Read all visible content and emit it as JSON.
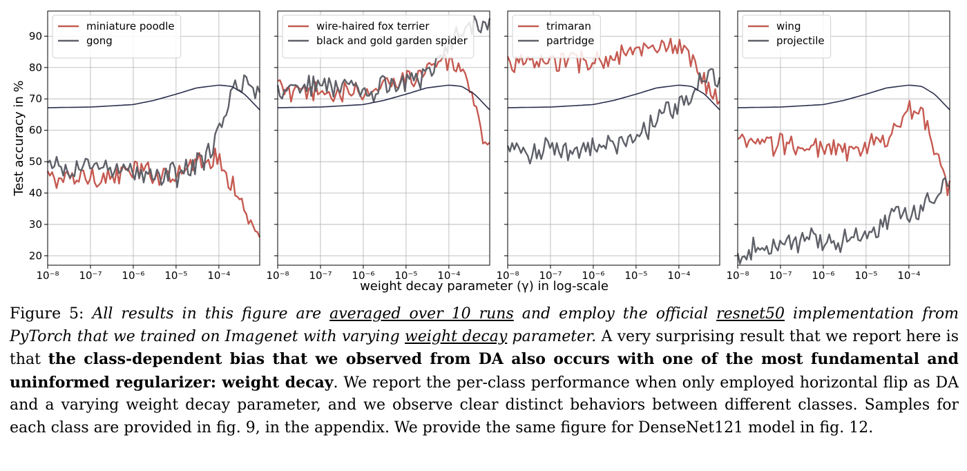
{
  "figure": {
    "xlabel": "weight decay parameter (γ) in log-scale",
    "ylabel": "Test accuracy in %",
    "x_ticks": [
      "10⁻⁸",
      "10⁻⁷",
      "10⁻⁶",
      "10⁻⁵",
      "10⁻⁴"
    ],
    "y_ticks": [
      "20",
      "30",
      "40",
      "50",
      "60",
      "70",
      "80",
      "90"
    ]
  },
  "colors": {
    "red": "#c55a51",
    "gray": "#5e6068",
    "navy": "#2a2e4c",
    "grid": "#b0b0b0"
  },
  "chart_data": [
    {
      "type": "line",
      "x_scale": "log",
      "xlim": [
        1e-08,
        0.0009
      ],
      "ylim": [
        17,
        98
      ],
      "series": [
        {
          "name": "miniature poodle",
          "color": "red",
          "x": [
            1e-08,
            3e-08,
            1e-07,
            3e-07,
            1e-06,
            3e-06,
            1e-05,
            3e-05,
            5e-05,
            0.0001,
            0.0002,
            0.0004,
            0.0009
          ],
          "y": [
            45,
            44,
            46,
            45,
            47,
            46,
            47,
            50,
            52,
            50,
            44,
            34,
            22
          ]
        },
        {
          "name": "gong",
          "color": "gray",
          "x": [
            1e-08,
            3e-08,
            1e-07,
            3e-07,
            1e-06,
            3e-06,
            1e-05,
            3e-05,
            6e-05,
            0.0001,
            0.00015,
            0.0002,
            0.0003,
            0.0005,
            0.0009
          ],
          "y": [
            48,
            47,
            49,
            48,
            47,
            45,
            46,
            49,
            53,
            58,
            65,
            72,
            75,
            75,
            72
          ]
        },
        {
          "name": "",
          "color": "navy",
          "x": [
            1e-08,
            1e-07,
            1e-06,
            3e-06,
            1e-05,
            3e-05,
            0.0001,
            0.0002,
            0.0004,
            0.0009
          ],
          "y": [
            67.2,
            67.4,
            68.2,
            69.5,
            71.5,
            73.5,
            74.4,
            74.0,
            71.5,
            66.5
          ]
        }
      ]
    },
    {
      "type": "line",
      "x_scale": "log",
      "xlim": [
        1e-08,
        0.0009
      ],
      "ylim": [
        17,
        98
      ],
      "series": [
        {
          "name": "wire-haired fox terrier",
          "color": "red",
          "x": [
            1e-08,
            3e-08,
            1e-07,
            3e-07,
            1e-06,
            3e-06,
            1e-05,
            3e-05,
            6e-05,
            0.0001,
            0.0002,
            0.0003,
            0.0005,
            0.0009
          ],
          "y": [
            74,
            71,
            72,
            72,
            71,
            74,
            77,
            80,
            82,
            81,
            78,
            72,
            62,
            53
          ]
        },
        {
          "name": "black and gold garden spider",
          "color": "gray",
          "x": [
            1e-08,
            3e-08,
            1e-07,
            3e-07,
            1e-06,
            3e-06,
            1e-05,
            3e-05,
            6e-05,
            0.0001,
            0.0002,
            0.0004,
            0.0009
          ],
          "y": [
            73,
            75,
            74,
            75,
            70,
            74,
            76,
            78,
            82,
            87,
            91,
            93,
            94
          ]
        },
        {
          "name": "",
          "color": "navy",
          "x": [
            1e-08,
            1e-07,
            1e-06,
            3e-06,
            1e-05,
            3e-05,
            0.0001,
            0.0002,
            0.0004,
            0.0009
          ],
          "y": [
            67.2,
            67.4,
            68.2,
            69.5,
            71.5,
            73.5,
            74.4,
            74.0,
            71.5,
            66.5
          ]
        }
      ]
    },
    {
      "type": "line",
      "x_scale": "log",
      "xlim": [
        1e-08,
        0.0009
      ],
      "ylim": [
        17,
        98
      ],
      "series": [
        {
          "name": "trimaran",
          "color": "red",
          "x": [
            1e-08,
            3e-08,
            1e-07,
            3e-07,
            1e-06,
            3e-06,
            1e-05,
            3e-05,
            0.0001,
            0.0002,
            0.0003,
            0.0005,
            0.0009
          ],
          "y": [
            82,
            81,
            82,
            82,
            82,
            83,
            85,
            86,
            85,
            82,
            79,
            74,
            67
          ]
        },
        {
          "name": "partridge",
          "color": "gray",
          "x": [
            1e-08,
            3e-08,
            1e-07,
            3e-07,
            1e-06,
            3e-06,
            1e-05,
            2e-05,
            5e-05,
            0.0001,
            0.0002,
            0.0004,
            0.0009
          ],
          "y": [
            54,
            53,
            55,
            53,
            54,
            55,
            57,
            61,
            66,
            68,
            72,
            78,
            76
          ]
        },
        {
          "name": "",
          "color": "navy",
          "x": [
            1e-08,
            1e-07,
            1e-06,
            3e-06,
            1e-05,
            3e-05,
            0.0001,
            0.0002,
            0.0004,
            0.0009
          ],
          "y": [
            67.2,
            67.4,
            68.2,
            69.5,
            71.5,
            73.5,
            74.4,
            74.0,
            71.5,
            66.5
          ]
        }
      ]
    },
    {
      "type": "line",
      "x_scale": "log",
      "xlim": [
        1e-08,
        0.0009
      ],
      "ylim": [
        17,
        98
      ],
      "series": [
        {
          "name": "wing",
          "color": "red",
          "x": [
            1e-08,
            3e-08,
            1e-07,
            3e-07,
            1e-06,
            3e-06,
            1e-05,
            3e-05,
            6e-05,
            0.0001,
            0.0002,
            0.0003,
            0.0005,
            0.0009
          ],
          "y": [
            56,
            55,
            56,
            55,
            54,
            53,
            54,
            58,
            62,
            66,
            65,
            60,
            52,
            40
          ]
        },
        {
          "name": "projectile",
          "color": "gray",
          "x": [
            1e-08,
            3e-08,
            1e-07,
            3e-07,
            1e-06,
            3e-06,
            1e-05,
            3e-05,
            0.0001,
            0.0002,
            0.0004,
            0.0009
          ],
          "y": [
            20,
            24,
            24,
            25,
            24,
            25,
            27,
            31,
            33,
            35,
            38,
            42
          ]
        },
        {
          "name": "",
          "color": "navy",
          "x": [
            1e-08,
            1e-07,
            1e-06,
            3e-06,
            1e-05,
            3e-05,
            0.0001,
            0.0002,
            0.0004,
            0.0009
          ],
          "y": [
            67.2,
            67.4,
            68.2,
            69.5,
            71.5,
            73.5,
            74.4,
            74.0,
            71.5,
            66.5
          ]
        }
      ]
    }
  ],
  "caption": {
    "label": "Figure 5:",
    "intro": "All results in this figure are",
    "runs": "averaged over 10 runs",
    "employ": "and employ the official",
    "model": "resnet50",
    "impl": "implementation from PyTorch that we trained on Imagenet with varying",
    "wd": "weight decay",
    "param": "parameter.",
    "sentence2": "A very surprising result that we report here is that",
    "bold": "the class-dependent bias that we observed from DA also occurs with one of the most fundamental and uninformed regularizer: weight decay",
    "rest": ". We report the per-class performance when only employed horizontal flip as DA and a varying weight decay parameter, and we observe clear distinct behaviors between different classes. Samples for each class are provided in fig. 9, in the appendix. We provide the same figure for DenseNet121 model in fig. 12."
  }
}
